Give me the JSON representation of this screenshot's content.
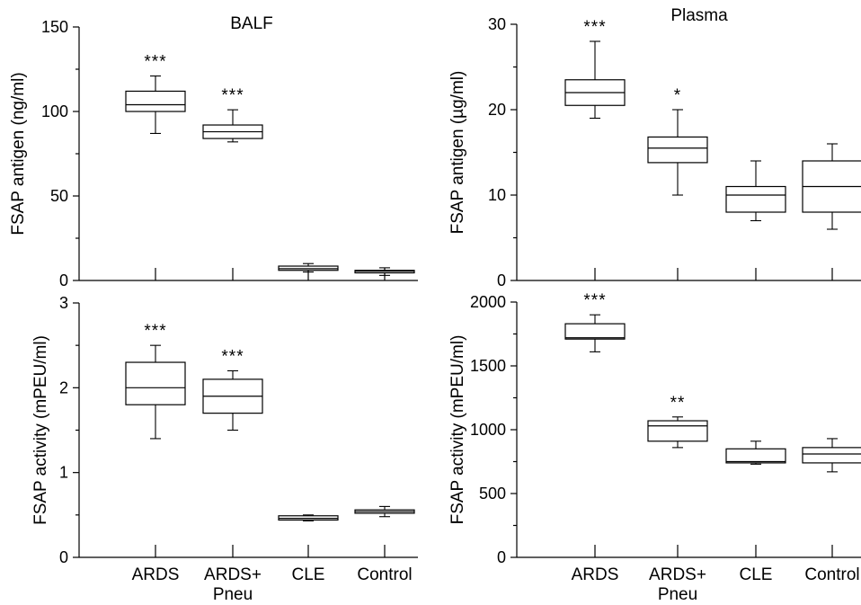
{
  "chart_data": [
    {
      "type": "box",
      "title": "BALF",
      "xlabel": "",
      "ylabel": "FSAP antigen (ng/ml)",
      "ylim": [
        0,
        150
      ],
      "yticks": [
        0,
        50,
        100,
        150
      ],
      "grid": false,
      "categories": [
        "ARDS",
        "ARDS+\nPneu",
        "CLE",
        "Control"
      ],
      "boxes": [
        {
          "category": "ARDS",
          "min": 87,
          "q1": 100,
          "median": 104,
          "q3": 112,
          "max": 121,
          "significance": "***"
        },
        {
          "category": "ARDS+ Pneu",
          "min": 82,
          "q1": 84,
          "median": 88,
          "q3": 92,
          "max": 101,
          "significance": "***"
        },
        {
          "category": "CLE",
          "min": 5,
          "q1": 6,
          "median": 7,
          "q3": 8.5,
          "max": 10,
          "significance": ""
        },
        {
          "category": "Control",
          "min": 3,
          "q1": 4.5,
          "median": 5.5,
          "q3": 6,
          "max": 7.5,
          "significance": ""
        }
      ]
    },
    {
      "type": "box",
      "title": "Plasma",
      "xlabel": "",
      "ylabel": "FSAP antigen (µg/ml)",
      "ylim": [
        0,
        30
      ],
      "yticks": [
        0,
        10,
        20,
        30
      ],
      "grid": false,
      "categories": [
        "ARDS",
        "ARDS+\nPneu",
        "CLE",
        "Control"
      ],
      "boxes": [
        {
          "category": "ARDS",
          "min": 19,
          "q1": 20.5,
          "median": 22,
          "q3": 23.5,
          "max": 28,
          "significance": "***"
        },
        {
          "category": "ARDS+ Pneu",
          "min": 10,
          "q1": 13.8,
          "median": 15.5,
          "q3": 16.8,
          "max": 20,
          "significance": "*"
        },
        {
          "category": "CLE",
          "min": 7,
          "q1": 8,
          "median": 10,
          "q3": 11,
          "max": 14,
          "significance": ""
        },
        {
          "category": "Control",
          "min": 6,
          "q1": 8,
          "median": 11,
          "q3": 14,
          "max": 16,
          "significance": ""
        }
      ]
    },
    {
      "type": "box",
      "title": "",
      "xlabel": "",
      "ylabel": "FSAP activity (mPEU/ml)",
      "ylim": [
        0,
        3
      ],
      "yticks": [
        0,
        1,
        2,
        3
      ],
      "grid": false,
      "categories": [
        "ARDS",
        "ARDS+\nPneu",
        "CLE",
        "Control"
      ],
      "boxes": [
        {
          "category": "ARDS",
          "min": 1.4,
          "q1": 1.8,
          "median": 2.0,
          "q3": 2.3,
          "max": 2.5,
          "significance": "***"
        },
        {
          "category": "ARDS+ Pneu",
          "min": 1.5,
          "q1": 1.7,
          "median": 1.9,
          "q3": 2.1,
          "max": 2.2,
          "significance": "***"
        },
        {
          "category": "CLE",
          "min": 0.43,
          "q1": 0.44,
          "median": 0.46,
          "q3": 0.49,
          "max": 0.5,
          "significance": ""
        },
        {
          "category": "Control",
          "min": 0.48,
          "q1": 0.52,
          "median": 0.54,
          "q3": 0.56,
          "max": 0.6,
          "significance": ""
        }
      ]
    },
    {
      "type": "box",
      "title": "",
      "xlabel": "",
      "ylabel": "FSAP activity (mPEU/ml)",
      "ylim": [
        0,
        2000
      ],
      "yticks": [
        0,
        500,
        1000,
        1500,
        2000
      ],
      "grid": false,
      "categories": [
        "ARDS",
        "ARDS+\nPneu",
        "CLE",
        "Control"
      ],
      "boxes": [
        {
          "category": "ARDS",
          "min": 1610,
          "q1": 1710,
          "median": 1720,
          "q3": 1830,
          "max": 1900,
          "significance": "***"
        },
        {
          "category": "ARDS+ Pneu",
          "min": 860,
          "q1": 910,
          "median": 1030,
          "q3": 1070,
          "max": 1100,
          "significance": "**"
        },
        {
          "category": "CLE",
          "min": 730,
          "q1": 740,
          "median": 750,
          "q3": 850,
          "max": 910,
          "significance": ""
        },
        {
          "category": "Control",
          "min": 670,
          "q1": 740,
          "median": 810,
          "q3": 860,
          "max": 930,
          "significance": ""
        }
      ]
    }
  ],
  "x_categories_display": [
    {
      "line1": "ARDS",
      "line2": ""
    },
    {
      "line1": "ARDS+",
      "line2": "Pneu"
    },
    {
      "line1": "CLE",
      "line2": ""
    },
    {
      "line1": "Control",
      "line2": ""
    }
  ]
}
